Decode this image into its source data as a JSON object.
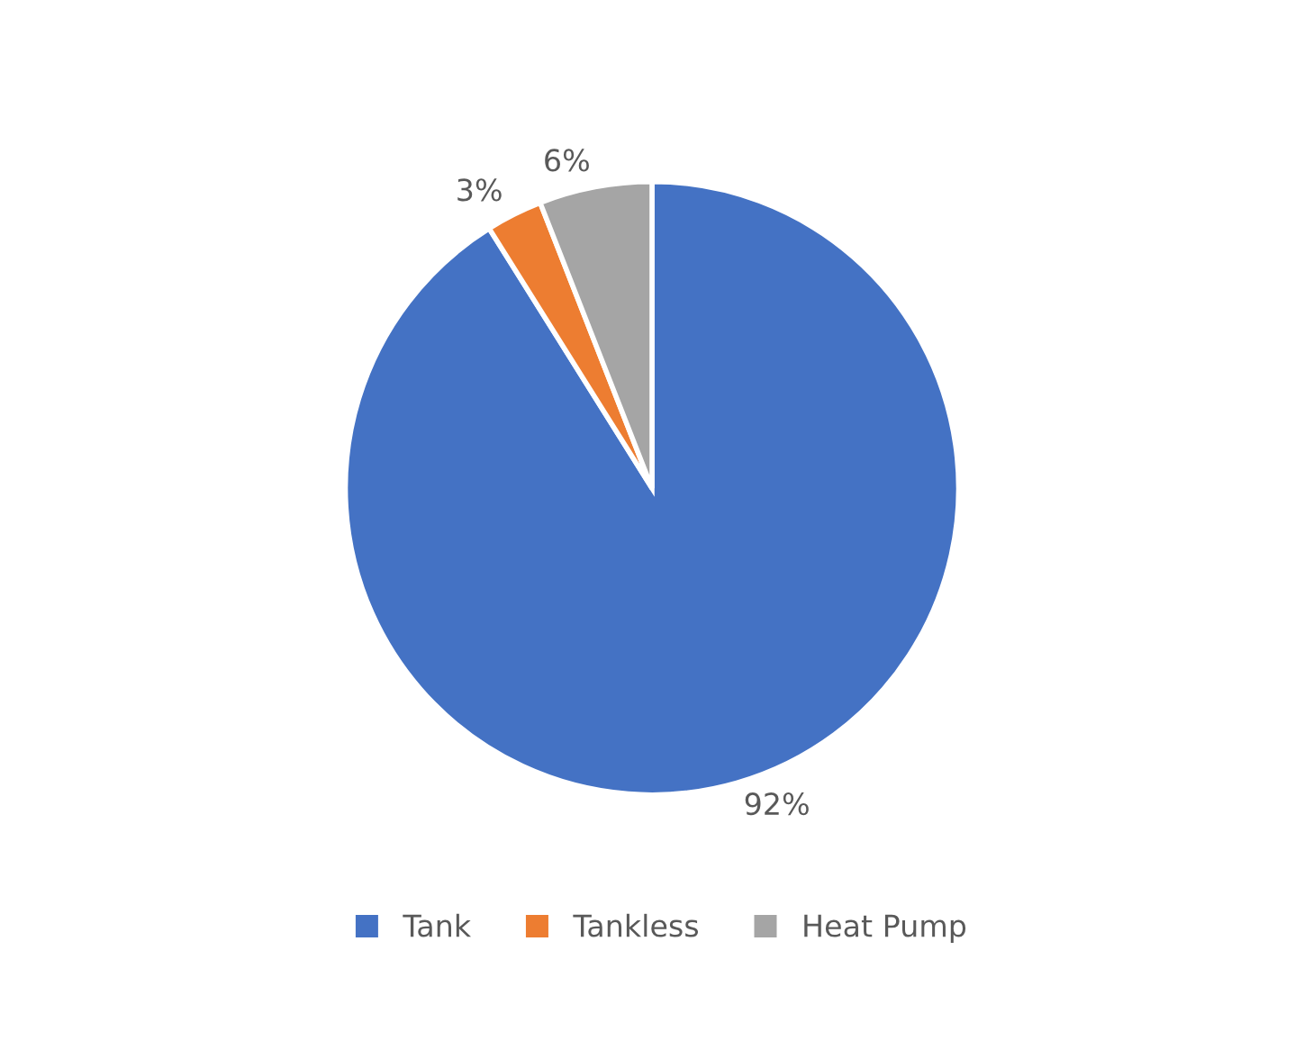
{
  "chart_data": {
    "type": "pie",
    "categories": [
      "Tank",
      "Tankless",
      "Heat Pump"
    ],
    "values": [
      92,
      3,
      6
    ],
    "value_labels": [
      "92%",
      "3%",
      "6%"
    ],
    "colors": [
      "#4472c4",
      "#ed7d31",
      "#a5a5a5"
    ],
    "legend": "bottom"
  }
}
